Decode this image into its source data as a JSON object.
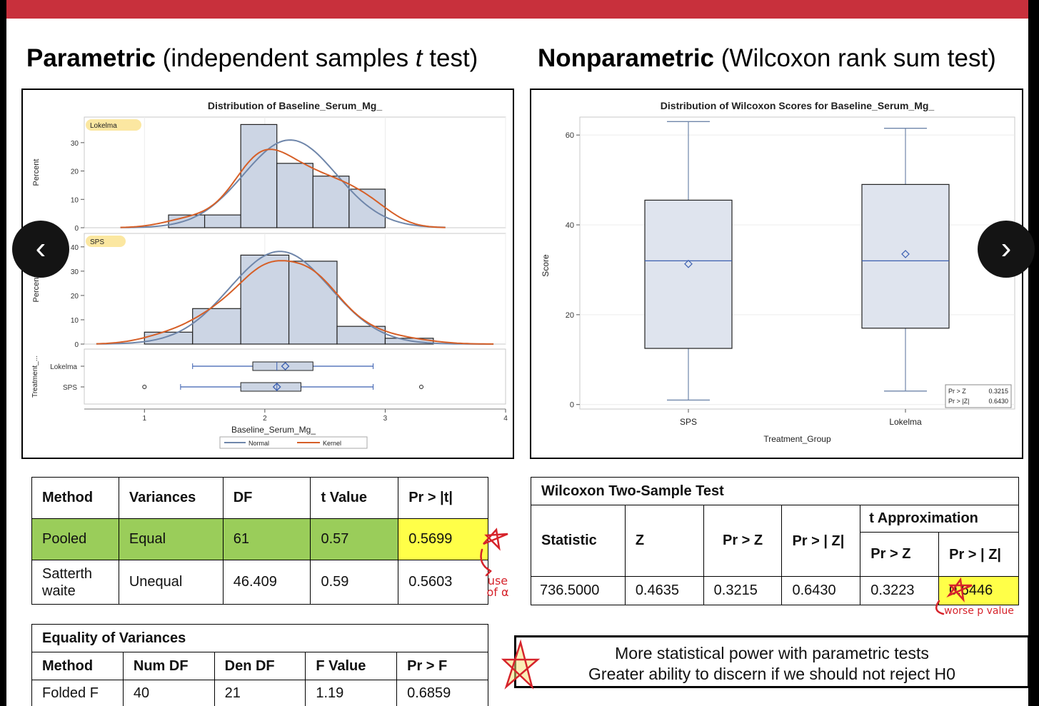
{
  "headings": {
    "left_bold": "Parametric",
    "left_rest": " (independent samples ",
    "left_t": "t",
    "left_end": " test)",
    "right_bold": "Nonparametric",
    "right_rest": " (Wilcoxon rank sum test)"
  },
  "chart_data": [
    {
      "type": "bar",
      "title": "Distribution of Baseline_Serum_Mg_",
      "xlabel": "Baseline_Serum_Mg_",
      "ylabel": "Percent",
      "x_ticks": [
        "1",
        "2",
        "3",
        "4"
      ],
      "xlim": [
        0.5,
        4.0
      ],
      "panels": [
        {
          "name": "Lokelma",
          "y_ticks": [
            "0",
            "10",
            "20",
            "30"
          ],
          "ylim": [
            0,
            36
          ],
          "bins": [
            {
              "x0": 1.2,
              "x1": 1.5,
              "value": 4.5
            },
            {
              "x0": 1.5,
              "x1": 1.8,
              "value": 4.5
            },
            {
              "x0": 1.8,
              "x1": 2.1,
              "value": 36.4
            },
            {
              "x0": 2.1,
              "x1": 2.4,
              "value": 22.7
            },
            {
              "x0": 2.4,
              "x1": 2.7,
              "value": 18.2
            },
            {
              "x0": 2.7,
              "x1": 3.0,
              "value": 13.6
            }
          ]
        },
        {
          "name": "SPS",
          "y_ticks": [
            "0",
            "10",
            "20",
            "30",
            "40"
          ],
          "ylim": [
            0,
            42
          ],
          "bins": [
            {
              "x0": 1.0,
              "x1": 1.4,
              "value": 4.9
            },
            {
              "x0": 1.4,
              "x1": 1.8,
              "value": 14.6
            },
            {
              "x0": 1.8,
              "x1": 2.2,
              "value": 36.6
            },
            {
              "x0": 2.2,
              "x1": 2.6,
              "value": 34.1
            },
            {
              "x0": 2.6,
              "x1": 3.0,
              "value": 7.3
            },
            {
              "x0": 3.0,
              "x1": 3.4,
              "value": 2.4
            }
          ]
        }
      ],
      "boxplot": {
        "ylabel": "Treatment_...",
        "rows": [
          {
            "name": "Lokelma",
            "whisker_low": 1.4,
            "q1": 1.9,
            "median": 2.1,
            "mean": 2.17,
            "q3": 2.4,
            "whisker_high": 2.9,
            "outliers": []
          },
          {
            "name": "SPS",
            "whisker_low": 1.3,
            "q1": 1.8,
            "median": 2.1,
            "mean": 2.1,
            "q3": 2.3,
            "whisker_high": 2.9,
            "outliers": [
              1.0,
              3.3
            ]
          }
        ]
      },
      "legend": [
        "Normal",
        "Kernel"
      ],
      "colors": {
        "bar": "#ccd5e4",
        "normal": "#6f86aa",
        "kernel": "#d65f27",
        "highlight": "#fbe7a1"
      }
    },
    {
      "type": "box",
      "title": "Distribution of Wilcoxon Scores for Baseline_Serum_Mg_",
      "xlabel": "Treatment_Group",
      "ylabel": "Score",
      "y_ticks": [
        "0",
        "20",
        "40",
        "60"
      ],
      "ylim": [
        -1,
        64
      ],
      "categories": [
        "SPS",
        "Lokelma"
      ],
      "boxes": [
        {
          "name": "SPS",
          "min": 1,
          "q1": 12.5,
          "median": 32,
          "mean": 31.3,
          "q3": 45.5,
          "max": 63
        },
        {
          "name": "Lokelma",
          "min": 3,
          "q1": 17,
          "median": 32,
          "mean": 33.5,
          "q3": 49,
          "max": 61.5
        }
      ],
      "inset": [
        {
          "label": "Pr > Z",
          "value": "0.3215"
        },
        {
          "label": "Pr > |Z|",
          "value": "0.6430"
        }
      ]
    }
  ],
  "ttest_table": {
    "headers": [
      "Method",
      "Variances",
      "DF",
      "t Value",
      "Pr > |t|"
    ],
    "rows": [
      [
        "Pooled",
        "Equal",
        "61",
        "0.57",
        "0.5699"
      ],
      [
        "Satterth waite",
        "Unequal",
        "46.409",
        "0.59",
        "0.5603"
      ]
    ]
  },
  "equality_table": {
    "title": "Equality of Variances",
    "headers": [
      "Method",
      "Num DF",
      "Den DF",
      "F Value",
      "Pr > F"
    ],
    "rows": [
      [
        "Folded F",
        "40",
        "21",
        "1.19",
        "0.6859"
      ]
    ]
  },
  "wilcoxon_table": {
    "title": "Wilcoxon Two-Sample Test",
    "group_header": "t Approximation",
    "headers": [
      "Statistic",
      "Z",
      "Pr > Z",
      "Pr > | Z|",
      "Pr > Z",
      "Pr > | Z|"
    ],
    "row": [
      "736.5000",
      "0.4635",
      "0.3215",
      "0.6430",
      "0.3223",
      "0.6446"
    ]
  },
  "note": {
    "line1": "More statistical power with parametric tests",
    "line2": "Greater ability to discern if we should not reject H0"
  },
  "annotations": {
    "use_alpha": "use of α",
    "worse_p": "worse p value"
  },
  "nav": {
    "prev": "‹",
    "next": "›"
  }
}
